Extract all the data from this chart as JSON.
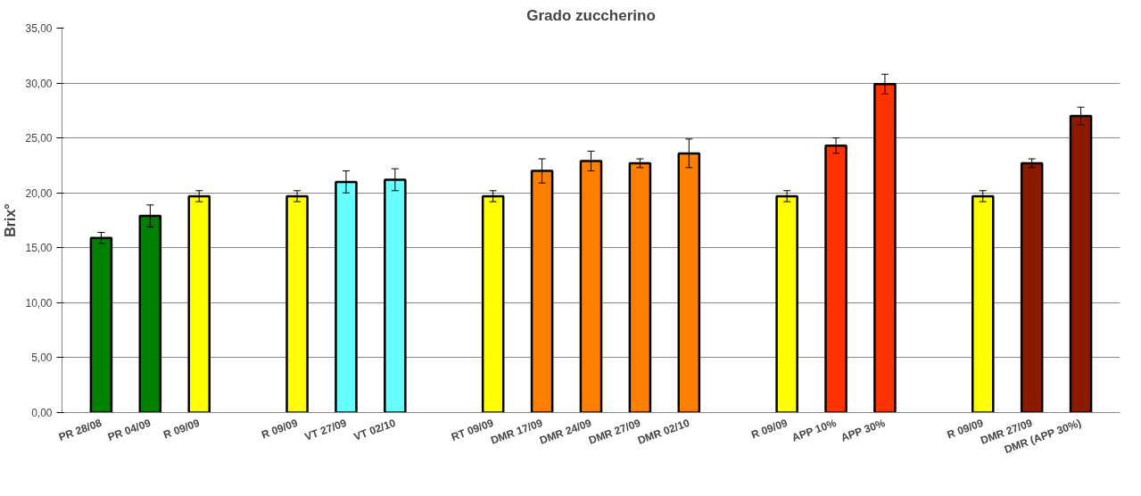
{
  "chart_data": {
    "type": "bar",
    "title": "Grado zuccherino",
    "ylabel": "Brix°",
    "categories": [
      "PR 28/08",
      "PR 04/09",
      "R 09/09",
      null,
      "R 09/09",
      "VT 27/09",
      "VT 02/10",
      null,
      "RT 09/09",
      "DMR 17/09",
      "DMR 24/09",
      "DMR 27/09",
      "DMR 02/10",
      null,
      "R 09/09",
      "APP 10%",
      "APP 30%",
      null,
      "R 09/09",
      "DMR 27/09",
      "DMR (APP 30%)"
    ],
    "values": [
      15.9,
      17.9,
      19.7,
      null,
      19.7,
      21.0,
      21.2,
      null,
      19.7,
      22.0,
      22.9,
      22.7,
      23.6,
      null,
      19.7,
      24.3,
      29.9,
      null,
      19.7,
      22.7,
      27.0
    ],
    "errors": [
      0.5,
      1.0,
      0.5,
      null,
      0.5,
      1.0,
      1.0,
      null,
      0.5,
      1.1,
      0.9,
      0.4,
      1.3,
      null,
      0.5,
      0.7,
      0.9,
      null,
      0.5,
      0.4,
      0.8
    ],
    "colors": [
      "#008000",
      "#008000",
      "#ffff00",
      null,
      "#ffff00",
      "#66ffff",
      "#66ffff",
      null,
      "#ffff00",
      "#ff8000",
      "#ff8000",
      "#ff8000",
      "#ff8000",
      null,
      "#ffff00",
      "#ff3300",
      "#ff3300",
      null,
      "#ffff00",
      "#8b1a00",
      "#8b1a00"
    ],
    "ylim": [
      0,
      35
    ],
    "yticks": [
      {
        "value": 0,
        "label": "0,00"
      },
      {
        "value": 5,
        "label": "5,00"
      },
      {
        "value": 10,
        "label": "10,00"
      },
      {
        "value": 15,
        "label": "15,00"
      },
      {
        "value": 20,
        "label": "20,00"
      },
      {
        "value": 25,
        "label": "25,00"
      },
      {
        "value": 30,
        "label": "30,00"
      },
      {
        "value": 35,
        "label": "35,00"
      }
    ],
    "grid": "y"
  }
}
